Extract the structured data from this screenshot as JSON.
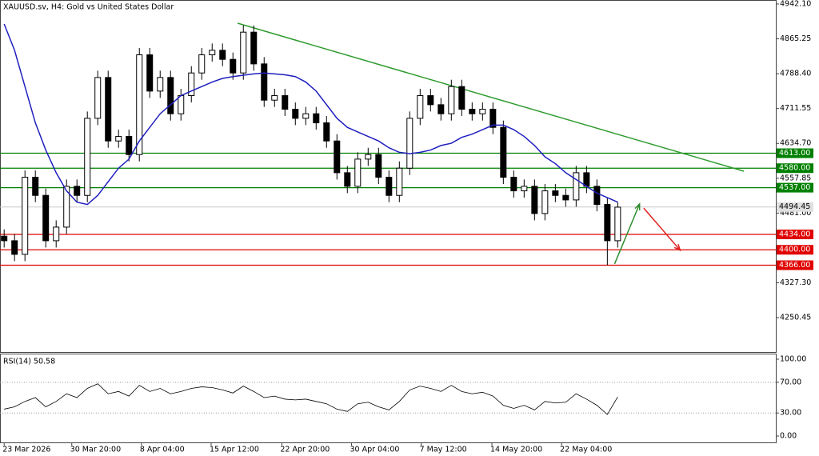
{
  "chart_data": {
    "type": "candlestick",
    "title": "XAUUSD.sv, H4:  Gold vs United States Dollar",
    "xlim": [
      -0.4,
      74.2
    ],
    "xticks": [
      {
        "value": 0,
        "label": "23 Mar 2026"
      },
      {
        "value": 6.5,
        "label": "30 Mar 20:00"
      },
      {
        "value": 13.2,
        "label": "8 Apr 04:00"
      },
      {
        "value": 19.9,
        "label": "15 Apr 12:00"
      },
      {
        "value": 26.7,
        "label": "22 Apr 20:00"
      },
      {
        "value": 33.4,
        "label": "30 Apr 04:00"
      },
      {
        "value": 40.1,
        "label": "7 May 12:00"
      },
      {
        "value": 46.9,
        "label": "14 May 20:00"
      },
      {
        "value": 53.6,
        "label": "22 May 04:00"
      }
    ],
    "ylim": [
      4174.6,
      4950.9
    ],
    "yticks": [
      {
        "value": 4942.1,
        "label": "4942.10"
      },
      {
        "value": 4865.25,
        "label": "4865.25"
      },
      {
        "value": 4788.4,
        "label": "4788.40"
      },
      {
        "value": 4711.55,
        "label": "4711.55"
      },
      {
        "value": 4634.7,
        "label": "4634.70"
      },
      {
        "value": 4557.85,
        "label": "4557.85"
      },
      {
        "value": 4481,
        "label": "4481.00"
      },
      {
        "value": 4327.3,
        "label": "4327.30"
      },
      {
        "value": 4250.45,
        "label": "4250.45"
      }
    ],
    "candles": {
      "open": [
        4430,
        4420,
        4390,
        4560,
        4520,
        4420,
        4450,
        4540,
        4520,
        4690,
        4780,
        4640,
        4650,
        4610,
        4830,
        4750,
        4780,
        4700,
        4740,
        4790,
        4830,
        4840,
        4820,
        4790,
        4880,
        4810,
        4730,
        4740,
        4710,
        4690,
        4700,
        4680,
        4640,
        4570,
        4540,
        4600,
        4610,
        4560,
        4520,
        4580,
        4690,
        4740,
        4720,
        4700,
        4760,
        4710,
        4700,
        4710,
        4670,
        4560,
        4530,
        4540,
        4480,
        4530,
        4520,
        4510,
        4570,
        4540,
        4500,
        4420
      ],
      "high": [
        4445,
        4435,
        4575,
        4575,
        4535,
        4465,
        4555,
        4555,
        4705,
        4795,
        4795,
        4665,
        4665,
        4845,
        4845,
        4795,
        4795,
        4755,
        4805,
        4845,
        4855,
        4855,
        4835,
        4895,
        4895,
        4825,
        4755,
        4755,
        4725,
        4715,
        4715,
        4695,
        4655,
        4585,
        4615,
        4625,
        4625,
        4575,
        4595,
        4705,
        4755,
        4755,
        4735,
        4775,
        4775,
        4725,
        4725,
        4725,
        4685,
        4575,
        4555,
        4555,
        4545,
        4545,
        4535,
        4585,
        4585,
        4555,
        4515,
        4505
      ],
      "low": [
        4405,
        4375,
        4375,
        4505,
        4405,
        4405,
        4435,
        4505,
        4505,
        4675,
        4625,
        4625,
        4595,
        4595,
        4735,
        4735,
        4685,
        4685,
        4725,
        4775,
        4815,
        4805,
        4775,
        4775,
        4795,
        4715,
        4715,
        4695,
        4675,
        4675,
        4665,
        4625,
        4555,
        4525,
        4525,
        4585,
        4545,
        4505,
        4505,
        4565,
        4675,
        4705,
        4685,
        4685,
        4695,
        4685,
        4685,
        4655,
        4545,
        4515,
        4515,
        4465,
        4465,
        4505,
        4495,
        4495,
        4525,
        4485,
        4366,
        4405
      ],
      "close": [
        4420,
        4390,
        4560,
        4520,
        4420,
        4450,
        4540,
        4520,
        4690,
        4780,
        4640,
        4650,
        4610,
        4830,
        4750,
        4780,
        4700,
        4740,
        4790,
        4830,
        4840,
        4820,
        4790,
        4880,
        4810,
        4730,
        4740,
        4710,
        4690,
        4700,
        4680,
        4640,
        4570,
        4540,
        4600,
        4610,
        4560,
        4520,
        4580,
        4690,
        4740,
        4720,
        4700,
        4760,
        4710,
        4700,
        4710,
        4670,
        4560,
        4530,
        4540,
        4480,
        4530,
        4520,
        4510,
        4570,
        4540,
        4500,
        4420,
        4494
      ]
    },
    "ma": {
      "color": "#1f1fbf",
      "values": [
        4898,
        4840,
        4760,
        4680,
        4620,
        4570,
        4530,
        4505,
        4500,
        4520,
        4550,
        4580,
        4600,
        4640,
        4670,
        4700,
        4720,
        4740,
        4750,
        4760,
        4770,
        4778,
        4782,
        4785,
        4788,
        4790,
        4788,
        4786,
        4782,
        4770,
        4750,
        4720,
        4690,
        4670,
        4660,
        4650,
        4640,
        4625,
        4615,
        4612,
        4615,
        4620,
        4630,
        4635,
        4648,
        4655,
        4665,
        4675,
        4675,
        4665,
        4650,
        4630,
        4605,
        4590,
        4570,
        4555,
        4540,
        4525,
        4515,
        4505
      ]
    },
    "levels": [
      {
        "value": 4613,
        "label": "4613.00",
        "color": "#008000"
      },
      {
        "value": 4580,
        "label": "4580.00",
        "color": "#008000"
      },
      {
        "value": 4537,
        "label": "4537.00",
        "color": "#008000"
      },
      {
        "value": 4434,
        "label": "4434.00",
        "color": "#e00000"
      },
      {
        "value": 4400,
        "label": "4400.00",
        "color": "#e00000"
      },
      {
        "value": 4366,
        "label": "4366.00",
        "color": "#e00000"
      }
    ],
    "current_price": {
      "value": 4494.45,
      "label": "4494.45"
    },
    "trendline": {
      "color": "#2e9b2e",
      "x": [
        22.45,
        71.14
      ],
      "y": [
        4899.75,
        4573.3
      ]
    },
    "arrows": [
      {
        "color": "#2e8b2e",
        "x": [
          58.7,
          61.1
        ],
        "y": [
          4369,
          4501
        ]
      },
      {
        "color": "#e02020",
        "x": [
          61.5,
          65
        ],
        "y": [
          4492,
          4399
        ]
      }
    ],
    "rsi": {
      "label": "RSI(14) 50.58",
      "color": "#000000",
      "ylim": [
        -8.3,
        107.3
      ],
      "yticks": [
        {
          "value": 100,
          "label": "100.00"
        },
        {
          "value": 70,
          "label": "70.00"
        },
        {
          "value": 30,
          "label": "30.00"
        },
        {
          "value": 0,
          "label": "0.00"
        }
      ],
      "values": [
        35,
        38,
        45,
        50,
        38,
        45,
        55,
        50,
        62,
        68,
        55,
        58,
        52,
        66,
        58,
        62,
        55,
        58,
        62,
        64,
        63,
        60,
        56,
        65,
        58,
        50,
        52,
        48,
        47,
        48,
        45,
        42,
        35,
        32,
        42,
        44,
        38,
        34,
        45,
        60,
        65,
        62,
        58,
        66,
        58,
        55,
        57,
        52,
        40,
        36,
        40,
        34,
        45,
        43,
        44,
        55,
        48,
        40,
        28,
        51
      ]
    }
  }
}
